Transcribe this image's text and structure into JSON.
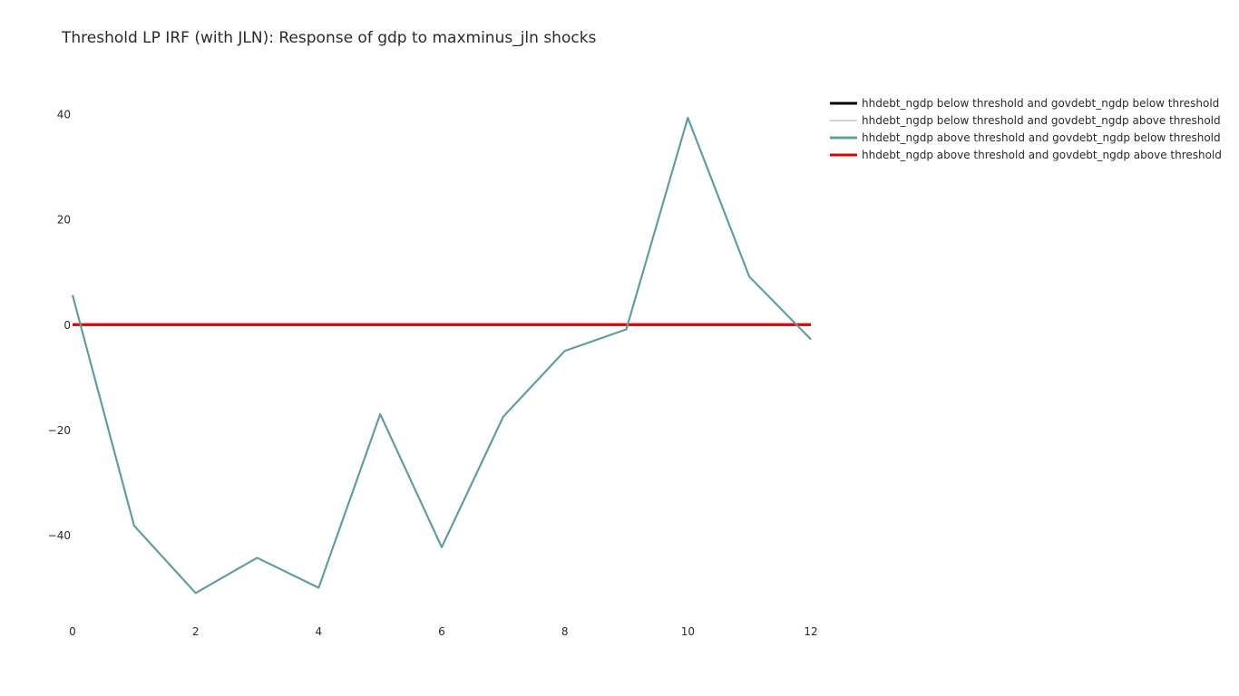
{
  "chart_data": {
    "type": "line",
    "title": "Threshold LP IRF (with JLN): Response of gdp to maxminus_jln shocks",
    "xlabel": "",
    "ylabel": "",
    "x": [
      0,
      1,
      2,
      3,
      4,
      5,
      6,
      7,
      8,
      9,
      10,
      11,
      12
    ],
    "xlim": [
      0,
      12
    ],
    "ylim": [
      -56,
      48
    ],
    "xticks": [
      0,
      2,
      4,
      6,
      8,
      10,
      12
    ],
    "xtick_labels": [
      "0",
      "2",
      "4",
      "6",
      "8",
      "10",
      "12"
    ],
    "yticks": [
      40,
      20,
      0,
      -20,
      -40
    ],
    "ytick_labels": [
      "40",
      "20",
      "0",
      "−20",
      "−40"
    ],
    "grid": false,
    "legend_position": "top-right",
    "series": [
      {
        "name": "hhdebt_ngdp below threshold and govdebt_ngdp below threshold",
        "color": "#000000",
        "values": [
          0,
          0,
          0,
          0,
          0,
          0,
          0,
          0,
          0,
          0,
          0,
          0,
          0
        ]
      },
      {
        "name": "hhdebt_ngdp below threshold and govdebt_ngdp above threshold",
        "color": "#d3d3d3",
        "values": [
          0,
          0,
          0,
          0,
          0,
          0,
          0,
          0,
          0,
          0,
          0,
          0,
          0
        ]
      },
      {
        "name": "hhdebt_ngdp above threshold and govdebt_ngdp below threshold",
        "color": "#5f9ea0",
        "values": [
          5.7,
          -38.1,
          -50.9,
          -44.2,
          -49.9,
          -16.9,
          -42.2,
          -17.4,
          -4.9,
          -0.8,
          39.4,
          9.2,
          -2.7
        ]
      },
      {
        "name": "hhdebt_ngdp above threshold and govdebt_ngdp above threshold",
        "color": "#e00000",
        "values": [
          0,
          0,
          0,
          0,
          0,
          0,
          0,
          0,
          0,
          0,
          0,
          0,
          0
        ]
      }
    ]
  }
}
